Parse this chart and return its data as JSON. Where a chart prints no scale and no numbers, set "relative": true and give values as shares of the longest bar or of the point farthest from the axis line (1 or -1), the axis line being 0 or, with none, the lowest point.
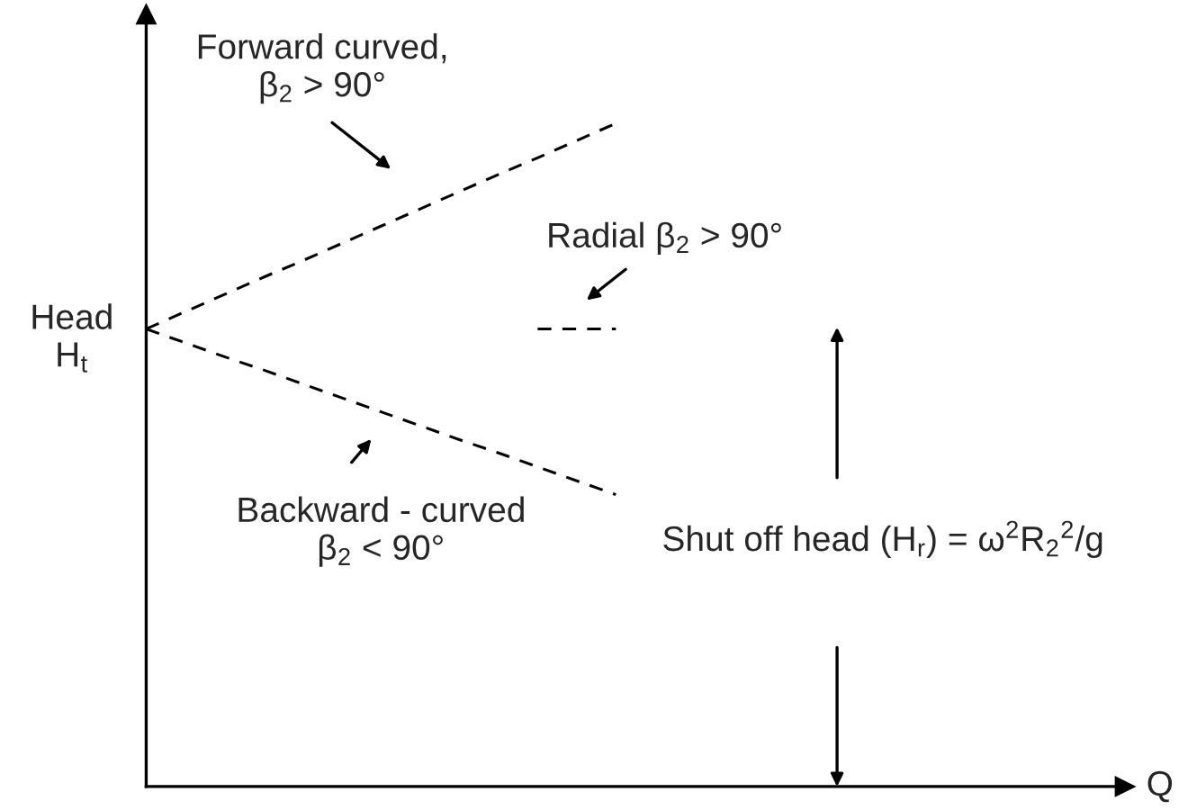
{
  "chart_data": {
    "type": "line",
    "relative": true,
    "xlabel": "Q",
    "ylabel": "Head\nH$_{t}$",
    "categories": [
      null,
      null,
      null,
      null,
      null,
      null,
      null,
      null,
      null,
      null,
      null,
      null,
      null,
      null,
      null,
      null,
      null,
      null,
      null,
      null,
      null,
      null,
      null,
      null,
      null,
      null
    ],
    "legend": false,
    "line_style": "dashed",
    "marker": "none",
    "series": [
      {
        "color": "#000000",
        "values": [
          0.69,
          0.716,
          0.742,
          0.768,
          0.793,
          0.819,
          0.845,
          0.871,
          0.897,
          0.923,
          0.948,
          0.974,
          1,
          null,
          null,
          null,
          null,
          null,
          null,
          null,
          null,
          null,
          null,
          null,
          null,
          null
        ]
      },
      {
        "color": "#000000",
        "values": [
          null,
          null,
          null,
          null,
          null,
          null,
          null,
          null,
          null,
          null,
          0.69,
          0.69,
          0.69,
          null,
          null,
          null,
          null,
          null,
          null,
          null,
          null,
          null,
          null,
          null,
          null,
          null
        ]
      },
      {
        "color": "#000000",
        "values": [
          0.69,
          0.669,
          0.648,
          0.628,
          0.607,
          0.586,
          0.565,
          0.544,
          0.523,
          0.503,
          0.482,
          0.461,
          0.44,
          null,
          null,
          null,
          null,
          null,
          null,
          null,
          null,
          null,
          null,
          null,
          null,
          null
        ]
      }
    ],
    "annotations": [
      "Forward curved,\nβ$_{2}$ > 90°",
      "Radial β$_{2}$ > 90°",
      "Backward - curved\nβ$_{2}$ < 90°",
      "Shut off head (H$_{r}$) = ω$^{2}$R$_{2}$$^{2}$/g"
    ]
  }
}
